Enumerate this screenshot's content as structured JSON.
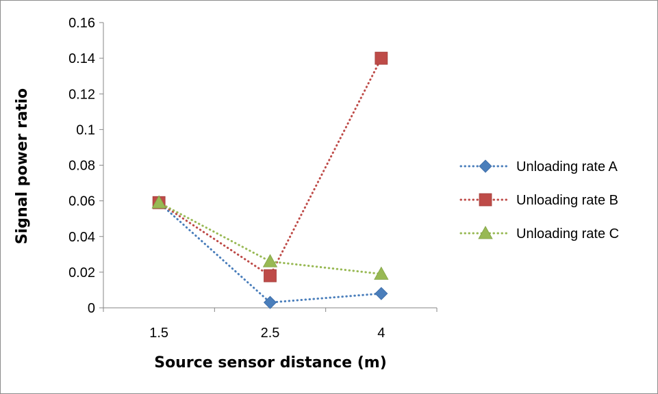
{
  "chart_data": {
    "type": "line",
    "x_label": "Source sensor distance (m)",
    "y_label": "Signal power ratio",
    "categories": [
      "1.5",
      "2.5",
      "4"
    ],
    "y_ticks": [
      "0",
      "0.02",
      "0.04",
      "0.06",
      "0.08",
      "0.1",
      "0.12",
      "0.14",
      "0.16"
    ],
    "ylim": [
      0,
      0.16
    ],
    "grid": false,
    "legend_position": "right",
    "series": [
      {
        "name": "Unloading rate A",
        "values": [
          0.059,
          0.003,
          0.008
        ],
        "color": "#4a7ebb",
        "marker": "diamond",
        "line_style": "dotted"
      },
      {
        "name": "Unloading rate B",
        "values": [
          0.059,
          0.018,
          0.14
        ],
        "color": "#be4b48",
        "marker": "square",
        "line_style": "dotted"
      },
      {
        "name": "Unloading rate C",
        "values": [
          0.059,
          0.026,
          0.019
        ],
        "color": "#98b954",
        "marker": "triangle",
        "line_style": "dotted"
      }
    ]
  }
}
